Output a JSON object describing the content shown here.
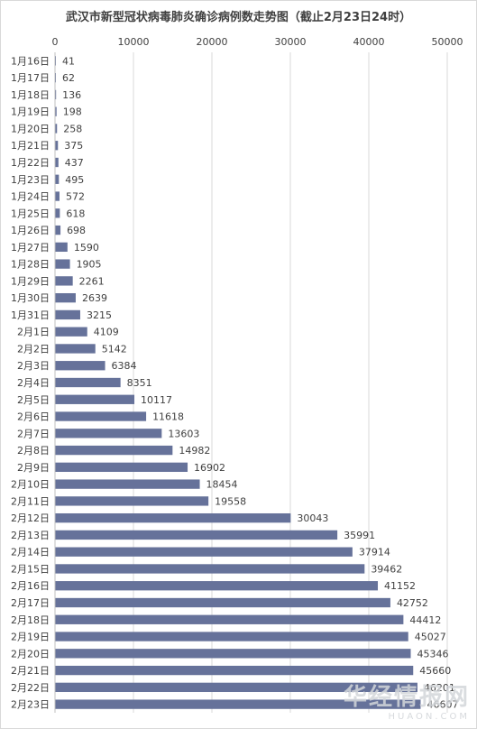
{
  "chart_data": {
    "type": "bar",
    "orientation": "horizontal",
    "title": "武汉市新型冠状病毒肺炎确诊病例数走势图（截止2月23日24时）",
    "categories": [
      "1月16日",
      "1月17日",
      "1月18日",
      "1月19日",
      "1月20日",
      "1月21日",
      "1月22日",
      "1月23日",
      "1月24日",
      "1月25日",
      "1月26日",
      "1月27日",
      "1月28日",
      "1月29日",
      "1月30日",
      "1月31日",
      "2月1日",
      "2月2日",
      "2月3日",
      "2月4日",
      "2月5日",
      "2月6日",
      "2月7日",
      "2月8日",
      "2月9日",
      "2月10日",
      "2月11日",
      "2月12日",
      "2月13日",
      "2月14日",
      "2月15日",
      "2月16日",
      "2月17日",
      "2月18日",
      "2月19日",
      "2月20日",
      "2月21日",
      "2月22日",
      "2月23日"
    ],
    "values": [
      41,
      62,
      136,
      198,
      258,
      375,
      437,
      495,
      572,
      618,
      698,
      1590,
      1905,
      2261,
      2639,
      3215,
      4109,
      5142,
      6384,
      8351,
      10117,
      11618,
      13603,
      14982,
      16902,
      18454,
      19558,
      30043,
      35991,
      37914,
      39462,
      41152,
      42752,
      44412,
      45027,
      45346,
      45660,
      46201,
      46607
    ],
    "xlim": [
      0,
      50000
    ],
    "xticks": [
      0,
      10000,
      20000,
      30000,
      40000,
      50000
    ],
    "xaxis_position": "top",
    "grid": true,
    "legend": "none",
    "bar_color": "#66729a"
  },
  "watermark": {
    "text": "华经情报网",
    "sub": "HUAON.COM"
  }
}
